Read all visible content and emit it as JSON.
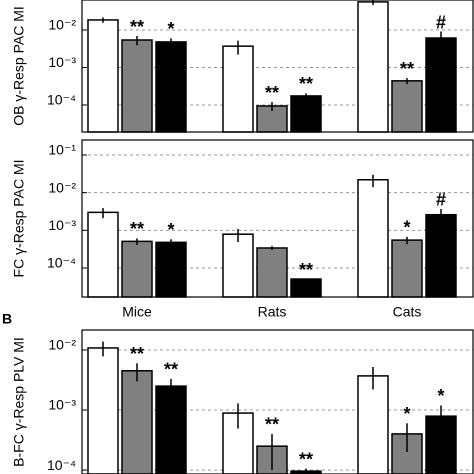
{
  "chart_data": [
    {
      "type": "bar",
      "ylabel": "OB γ-Resp PAC MI",
      "log_y": true,
      "grid": true,
      "ylim": [
        1.9e-05,
        0.063
      ],
      "yticks": [
        {
          "value": 0.01,
          "label": "10⁻²"
        },
        {
          "value": 0.001,
          "label": "10⁻³"
        },
        {
          "value": 0.0001,
          "label": "10⁻⁴"
        }
      ],
      "series": [
        {
          "color": "#ffffff",
          "values": [
            0.0185,
            0.0037,
            0.056
          ],
          "errors": [
            0.003,
            0.0015,
            0.01
          ],
          "markers": [
            null,
            null,
            null
          ]
        },
        {
          "color": "#808080",
          "values": [
            0.0054,
            9.4e-05,
            0.00044
          ],
          "errors": [
            0.0015,
            2.5e-05,
            8e-05
          ],
          "markers": [
            "**",
            "**",
            "**"
          ]
        },
        {
          "color": "#000000",
          "values": [
            0.0048,
            0.000174,
            0.0061
          ],
          "errors": [
            0.0012,
            3e-05,
            0.003
          ],
          "markers": [
            "*",
            "**",
            "#"
          ]
        }
      ]
    },
    {
      "type": "bar",
      "ylabel": "FC γ-Resp PAC MI",
      "log_y": true,
      "grid": true,
      "categories": [
        "Mice",
        "Rats",
        "Cats"
      ],
      "ylim": [
        1.7e-05,
        0.25
      ],
      "yticks": [
        {
          "value": 0.1,
          "label": "10⁻¹"
        },
        {
          "value": 0.01,
          "label": "10⁻²"
        },
        {
          "value": 0.001,
          "label": "10⁻³"
        },
        {
          "value": 0.0001,
          "label": "10⁻⁴"
        }
      ],
      "series": [
        {
          "color": "#ffffff",
          "values": [
            0.003,
            0.00079,
            0.022
          ],
          "errors": [
            0.0009,
            0.0003,
            0.008
          ],
          "markers": [
            null,
            null,
            null
          ]
        },
        {
          "color": "#808080",
          "values": [
            0.00051,
            0.00034,
            0.00055
          ],
          "errors": [
            0.0001,
            4e-05,
            0.00012
          ],
          "markers": [
            "**",
            null,
            "*"
          ]
        },
        {
          "color": "#000000",
          "values": [
            0.00048,
            5.1e-05,
            0.0026
          ],
          "errors": [
            0.0001,
            0,
            0.0011
          ],
          "markers": [
            "*",
            "**",
            "#"
          ]
        }
      ]
    },
    {
      "type": "bar",
      "panel_label": "B",
      "ylabel": "B-FC γ-Resp PLV MI",
      "log_y": true,
      "grid": true,
      "ylim": [
        8.6e-05,
        0.0215
      ],
      "yticks": [
        {
          "value": 0.01,
          "label": "10⁻²"
        },
        {
          "value": 0.001,
          "label": "10⁻³"
        },
        {
          "value": 0.0001,
          "label": "10⁻⁴"
        }
      ],
      "series": [
        {
          "color": "#ffffff",
          "values": [
            0.0108,
            0.00089,
            0.0037
          ],
          "errors": [
            0.003,
            0.0004,
            0.0015
          ],
          "markers": [
            null,
            null,
            null
          ]
        },
        {
          "color": "#808080",
          "values": [
            0.0045,
            0.00025,
            0.0004
          ],
          "errors": [
            0.0015,
            0.00015,
            0.0002
          ],
          "markers": [
            "**",
            "**",
            "*"
          ]
        },
        {
          "color": "#000000",
          "values": [
            0.0025,
            9.6e-05,
            0.00079
          ],
          "errors": [
            0.0008,
            1e-05,
            0.0004
          ],
          "markers": [
            "**",
            "**",
            "*"
          ]
        }
      ]
    }
  ]
}
